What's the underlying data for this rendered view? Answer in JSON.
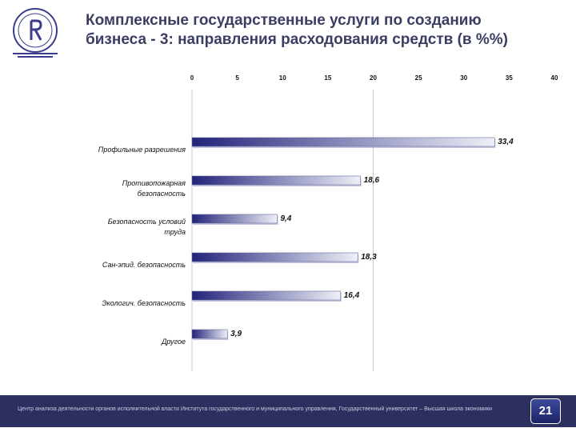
{
  "header": {
    "title_lines": [
      "Комплексные государственные услуги по созданию",
      "бизнеса - 3: направления расходования средств (в %%)"
    ]
  },
  "footer": {
    "text": "Центр анализа деятельности органов исполнительной власти Института государственного и муниципального управления, Государственный университет – Высшая школа экономики",
    "page_number": "21"
  },
  "colors": {
    "bar_dark": "#23237a",
    "bar_light": "#eef0f8",
    "footer_bg": "#2d2f5e"
  },
  "chart_data": {
    "type": "bar",
    "orientation": "horizontal",
    "xlim": [
      0,
      40
    ],
    "x_ticks": [
      0,
      5,
      10,
      15,
      20,
      25,
      30,
      35,
      40
    ],
    "x_tick_labels": [
      "0",
      "5",
      "10",
      "15",
      "20",
      "25",
      "30",
      "35",
      "40"
    ],
    "x_axis_position": "top",
    "grid": false,
    "categories": [
      [
        "Профильные разрешения"
      ],
      [
        "Противопожарная",
        "безопасность"
      ],
      [
        "Безопасность условий",
        "труда"
      ],
      [
        "Сан-эпид. безопасность"
      ],
      [
        "Экологич. безопасность"
      ],
      [
        "Другое"
      ]
    ],
    "values": [
      33.4,
      18.6,
      9.4,
      18.3,
      16.4,
      3.9
    ],
    "value_labels": [
      "33,4",
      "18,6",
      "9,4",
      "18,3",
      "16,4",
      "3,9"
    ]
  }
}
